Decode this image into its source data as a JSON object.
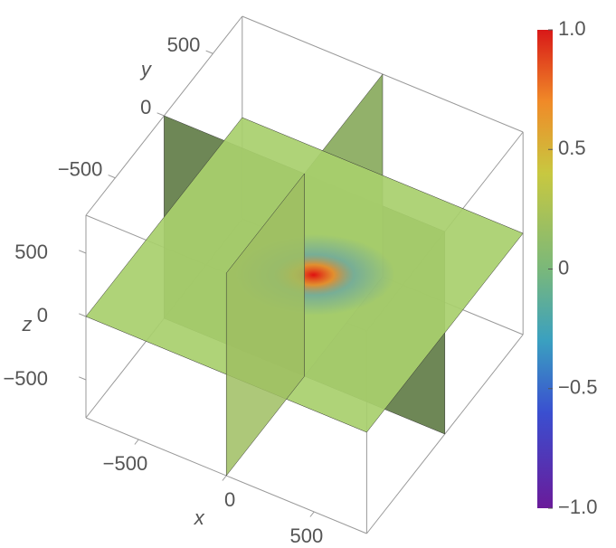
{
  "chart_data": {
    "type": "slice3d",
    "x_label": "x",
    "y_label": "y",
    "z_label": "z",
    "xlim": [
      -800,
      800
    ],
    "ylim": [
      -800,
      800
    ],
    "zlim": [
      -800,
      800
    ],
    "xticks": [
      {
        "value": -500,
        "label": "−500"
      },
      0,
      500
    ],
    "yticks": [
      {
        "value": -500,
        "label": "−500"
      },
      0,
      500
    ],
    "zticks": [
      {
        "value": -500,
        "label": "−500"
      },
      0,
      500
    ],
    "clim": [
      -1,
      1
    ],
    "colorbar_ticks": [
      {
        "value": 1,
        "label": "1.0"
      },
      {
        "value": 0.5,
        "label": "0.5"
      },
      0,
      {
        "value": -0.5,
        "label": "−0.5"
      },
      {
        "value": -1,
        "label": "−1.0"
      }
    ]
  }
}
